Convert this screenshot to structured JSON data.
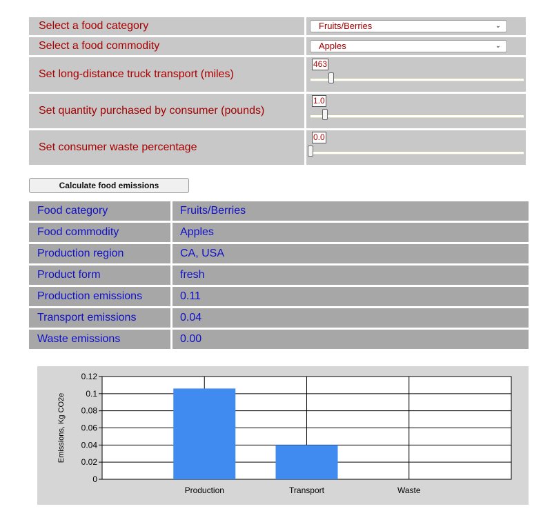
{
  "settings": {
    "category_label": "Select a food category",
    "category_value": "Fruits/Berries",
    "commodity_label": "Select a food commodity",
    "commodity_value": "Apples",
    "truck_label": "Set long-distance truck transport (miles)",
    "truck_value": "463",
    "truck_slider_fraction": 0.1,
    "quantity_label": "Set quantity purchased by consumer (pounds)",
    "quantity_value": "1.0",
    "quantity_slider_fraction": 0.07,
    "waste_label": "Set consumer waste percentage",
    "waste_value": "0.0",
    "waste_slider_fraction": 0.0
  },
  "calculate_label": "Calculate food emissions",
  "results": [
    {
      "label": "Food category",
      "value": "Fruits/Berries"
    },
    {
      "label": "Food commodity",
      "value": "Apples"
    },
    {
      "label": "Production region",
      "value": "CA, USA"
    },
    {
      "label": "Product form",
      "value": "fresh"
    },
    {
      "label": "Production emissions",
      "value": "0.11"
    },
    {
      "label": "Transport emissions",
      "value": "0.04"
    },
    {
      "label": "Waste emissions",
      "value": "0.00"
    }
  ],
  "colors": {
    "label_red": "#a80000",
    "result_blue": "#1010c8",
    "bar_blue": "#3f8bef"
  },
  "chart_data": {
    "type": "bar",
    "categories": [
      "Production",
      "Transport",
      "Waste"
    ],
    "values": [
      0.106,
      0.04,
      0
    ],
    "ylabel": "Emissions, Kg CO2e",
    "ylim": [
      0,
      0.12
    ],
    "yticks": [
      "0",
      "0.02",
      "0.04",
      "0.06",
      "0.08",
      "0.1",
      "0.12"
    ],
    "grid": true
  }
}
